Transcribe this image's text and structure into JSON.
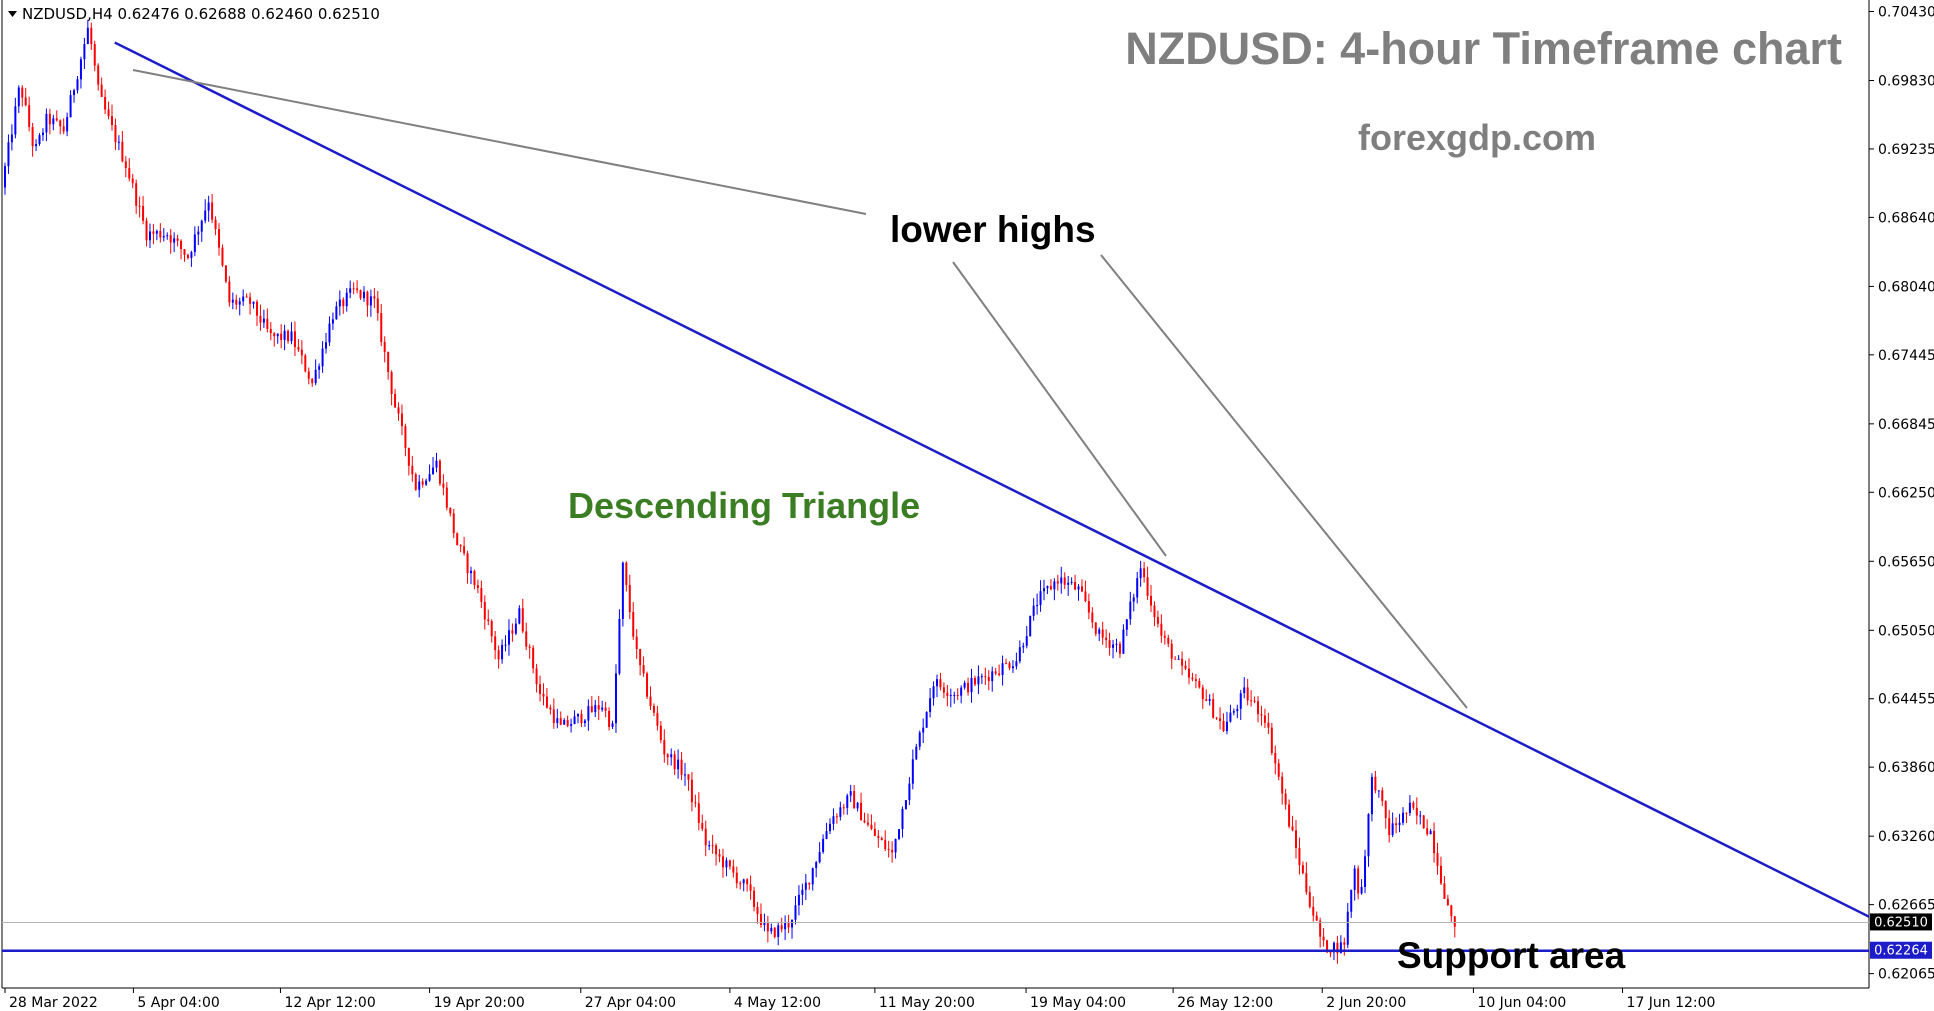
{
  "header": {
    "symbol_info": "NZDUSD,H4  0.62476 0.62688 0.62460 0.62510"
  },
  "overlay": {
    "title": "NZDUSD: 4-hour Timeframe chart",
    "site": "forexgdp.com",
    "lower_highs_label": "lower highs",
    "pattern_label": "Descending Triangle",
    "support_label": "Support area"
  },
  "colors": {
    "bull": "#0000ff",
    "bear": "#ff0000",
    "trendline": "#1c1cc8",
    "pointer": "#808080",
    "pattern_text": "#3a7d23"
  },
  "chart_data": {
    "type": "candlestick",
    "symbol": "NZDUSD",
    "timeframe": "H4",
    "ohlc_last": {
      "open": 0.62476,
      "high": 0.62688,
      "low": 0.6246,
      "close": 0.6251
    },
    "price_ticks": [
      "0.70430",
      "0.69830",
      "0.69235",
      "0.68640",
      "0.68040",
      "0.67445",
      "0.66845",
      "0.66250",
      "0.65650",
      "0.65050",
      "0.64455",
      "0.63860",
      "0.63260",
      "0.62665",
      "0.62065"
    ],
    "time_ticks": [
      "28 Mar 2022",
      "5 Apr 04:00",
      "12 Apr 12:00",
      "19 Apr 20:00",
      "27 Apr 04:00",
      "4 May 12:00",
      "11 May 20:00",
      "19 May 04:00",
      "26 May 12:00",
      "2 Jun 20:00",
      "10 Jun 04:00",
      "17 Jun 12:00"
    ],
    "current_price": "0.62510",
    "support_price": "0.62264",
    "ylim": [
      0.6194,
      0.7053
    ],
    "path_points": [
      [
        0.0,
        0.689
      ],
      [
        0.9,
        0.698
      ],
      [
        1.6,
        0.692
      ],
      [
        2.2,
        0.695
      ],
      [
        3.0,
        0.694
      ],
      [
        4.2,
        0.703
      ],
      [
        4.7,
        0.697
      ],
      [
        6.0,
        0.691
      ],
      [
        7.0,
        0.685
      ],
      [
        8.0,
        0.685
      ],
      [
        9.0,
        0.683
      ],
      [
        10.0,
        0.688
      ],
      [
        11.0,
        0.679
      ],
      [
        12.0,
        0.679
      ],
      [
        13.0,
        0.676
      ],
      [
        14.0,
        0.676
      ],
      [
        15.0,
        0.672
      ],
      [
        16.0,
        0.678
      ],
      [
        17.0,
        0.68
      ],
      [
        18.0,
        0.679
      ],
      [
        19.0,
        0.67
      ],
      [
        20.0,
        0.663
      ],
      [
        21.0,
        0.665
      ],
      [
        22.0,
        0.658
      ],
      [
        23.0,
        0.654
      ],
      [
        24.0,
        0.648
      ],
      [
        25.0,
        0.652
      ],
      [
        26.0,
        0.645
      ],
      [
        27.0,
        0.642
      ],
      [
        28.0,
        0.643
      ],
      [
        29.0,
        0.644
      ],
      [
        29.5,
        0.642
      ],
      [
        30.0,
        0.656
      ],
      [
        30.7,
        0.648
      ],
      [
        32.0,
        0.64
      ],
      [
        33.0,
        0.638
      ],
      [
        34.0,
        0.632
      ],
      [
        35.0,
        0.63
      ],
      [
        36.0,
        0.628
      ],
      [
        37.0,
        0.624
      ],
      [
        38.0,
        0.625
      ],
      [
        39.0,
        0.629
      ],
      [
        40.0,
        0.634
      ],
      [
        41.0,
        0.636
      ],
      [
        42.0,
        0.633
      ],
      [
        43.0,
        0.631
      ],
      [
        44.0,
        0.639
      ],
      [
        45.0,
        0.646
      ],
      [
        46.0,
        0.645
      ],
      [
        47.0,
        0.646
      ],
      [
        48.0,
        0.647
      ],
      [
        49.0,
        0.648
      ],
      [
        50.0,
        0.653
      ],
      [
        51.0,
        0.655
      ],
      [
        52.0,
        0.654
      ],
      [
        53.0,
        0.65
      ],
      [
        54.0,
        0.649
      ],
      [
        55.0,
        0.656
      ],
      [
        56.0,
        0.65
      ],
      [
        57.0,
        0.647
      ],
      [
        58.0,
        0.645
      ],
      [
        59.0,
        0.642
      ],
      [
        60.0,
        0.645
      ],
      [
        61.0,
        0.643
      ],
      [
        62.0,
        0.635
      ],
      [
        63.0,
        0.628
      ],
      [
        63.8,
        0.623
      ],
      [
        64.8,
        0.623
      ],
      [
        65.3,
        0.63
      ],
      [
        65.6,
        0.627
      ],
      [
        66.2,
        0.638
      ],
      [
        67.0,
        0.633
      ],
      [
        68.0,
        0.635
      ],
      [
        69.0,
        0.633
      ],
      [
        70.0,
        0.6251
      ]
    ],
    "trendline_points": [
      [
        0.7016,
        5.3
      ],
      [
        0.6256,
        90.0
      ]
    ],
    "pointer_from_label": "lower highs"
  }
}
